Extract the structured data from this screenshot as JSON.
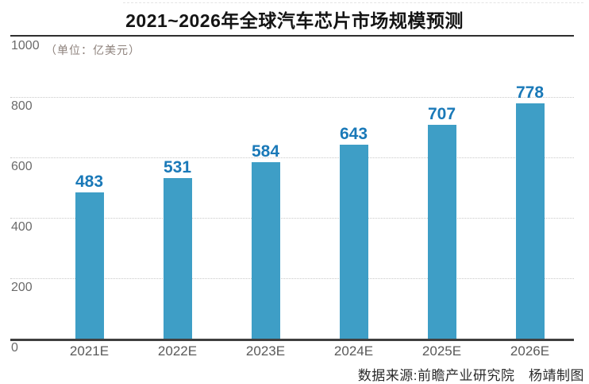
{
  "header": {
    "title": "2021~2026年全球汽车芯片市场规模预测"
  },
  "chart_data": {
    "type": "bar",
    "title": "2021~2026年全球汽车芯片市场规模预测",
    "unit_label": "（单位：亿美元）",
    "categories": [
      "2021E",
      "2022E",
      "2023E",
      "2024E",
      "2025E",
      "2026E"
    ],
    "values": [
      483,
      531,
      584,
      643,
      707,
      778
    ],
    "ylim": [
      0,
      1000
    ],
    "yticks": [
      0,
      200,
      400,
      600,
      800,
      1000
    ],
    "grid": "horizontal-dotted",
    "legend": "none",
    "source_note": "数据来源:前瞻产业研究院　杨靖制图"
  },
  "colors": {
    "bar": "#3e9ec6",
    "value_label": "#1a79b8",
    "axis_line": "#3f3f3f",
    "top_rule": "#2f2f2f",
    "gridline": "#c9c9c9",
    "ytick_text": "#6b6b6b",
    "xtick_text": "#595959",
    "unit_text": "#8e827c",
    "title_text": "#141414",
    "source_text": "#2b2b2b"
  }
}
